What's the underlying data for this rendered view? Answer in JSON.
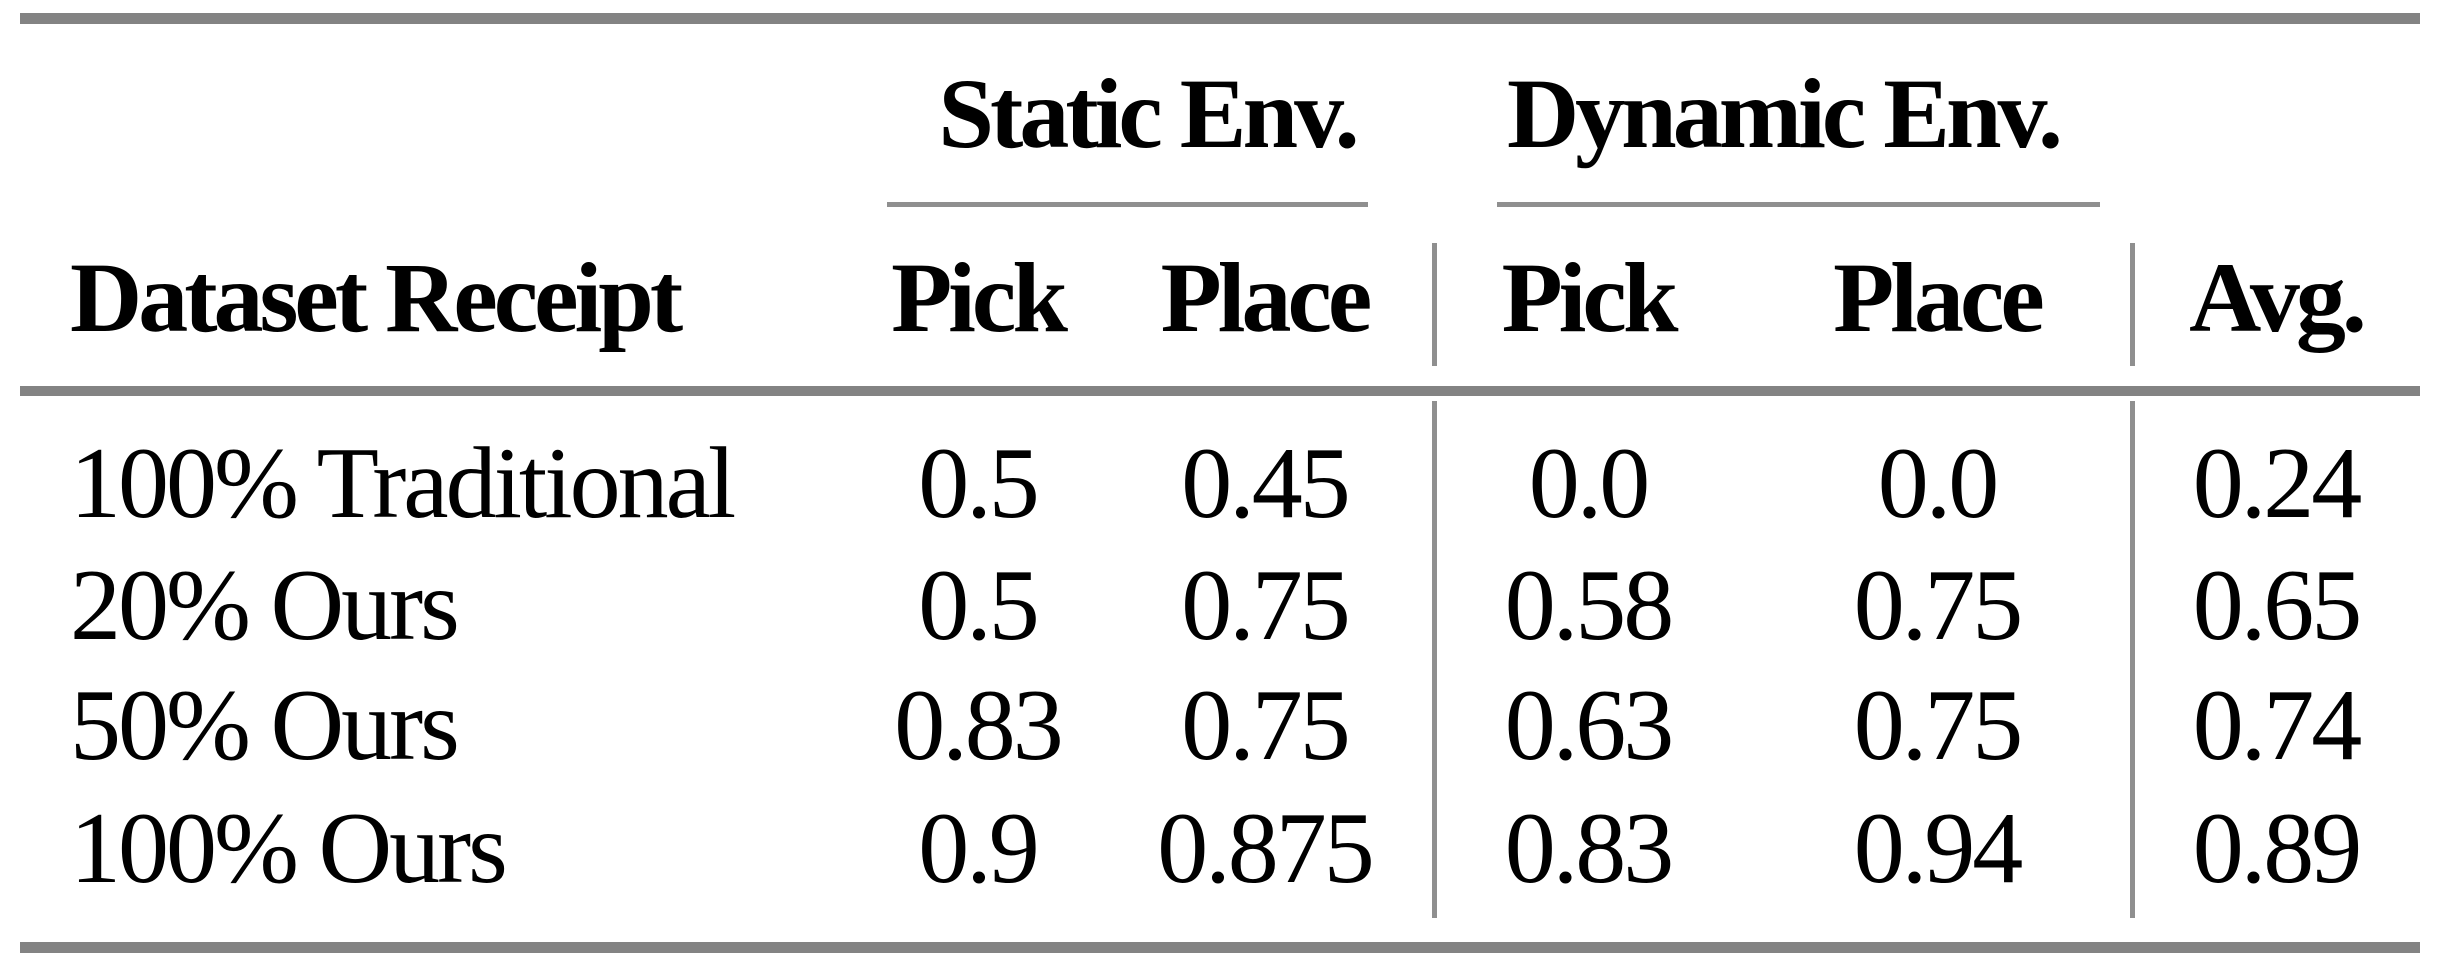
{
  "table": {
    "groups": [
      {
        "label": "Static Env."
      },
      {
        "label": "Dynamic Env."
      }
    ],
    "column_headers": [
      "Dataset Receipt",
      "Pick",
      "Place",
      "Pick",
      "Place",
      "Avg."
    ],
    "rows": [
      {
        "label": "100% Traditional",
        "values": [
          "0.5",
          "0.45",
          "0.0",
          "0.0",
          "0.24"
        ]
      },
      {
        "label": "20% Ours",
        "values": [
          "0.5",
          "0.75",
          "0.58",
          "0.75",
          "0.65"
        ]
      },
      {
        "label": "50% Ours",
        "values": [
          "0.83",
          "0.75",
          "0.63",
          "0.75",
          "0.74"
        ]
      },
      {
        "label": "100% Ours",
        "values": [
          "0.9",
          "0.875",
          "0.83",
          "0.94",
          "0.89"
        ]
      }
    ]
  },
  "colors": {
    "background": "#ffffff",
    "text": "#000000",
    "rule_thick": "#838383",
    "rule_thin": "#8f8f8f"
  }
}
